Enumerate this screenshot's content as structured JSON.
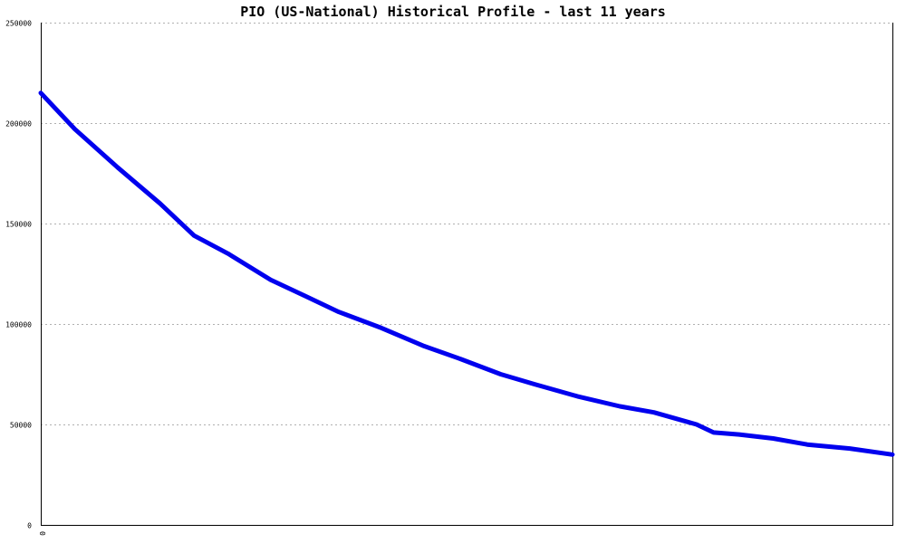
{
  "chart_data": {
    "type": "line",
    "title": "PIO (US-National) Historical Profile - last 11 years",
    "xlabel": "",
    "ylabel": "",
    "x_tick_labels": [
      "0"
    ],
    "y_ticks": [
      0,
      50000,
      100000,
      150000,
      200000,
      250000
    ],
    "y_tick_labels": [
      "0",
      "50000",
      "100000",
      "150000",
      "200000",
      "250000"
    ],
    "ylim": [
      0,
      250000
    ],
    "xlim": [
      0,
      1
    ],
    "grid": "horizontal dashed",
    "series": [
      {
        "color": "#0000ee",
        "x": [
          0,
          0.04,
          0.09,
          0.14,
          0.18,
          0.22,
          0.27,
          0.31,
          0.35,
          0.4,
          0.45,
          0.49,
          0.54,
          0.58,
          0.63,
          0.68,
          0.72,
          0.77,
          0.79,
          0.82,
          0.86,
          0.9,
          0.95,
          1.0
        ],
        "values": [
          215000,
          197000,
          178000,
          160000,
          144000,
          135000,
          122000,
          114000,
          106000,
          98000,
          89000,
          83000,
          75000,
          70000,
          64000,
          59000,
          56000,
          50000,
          46000,
          45000,
          43000,
          40000,
          38000,
          35000
        ]
      }
    ]
  }
}
